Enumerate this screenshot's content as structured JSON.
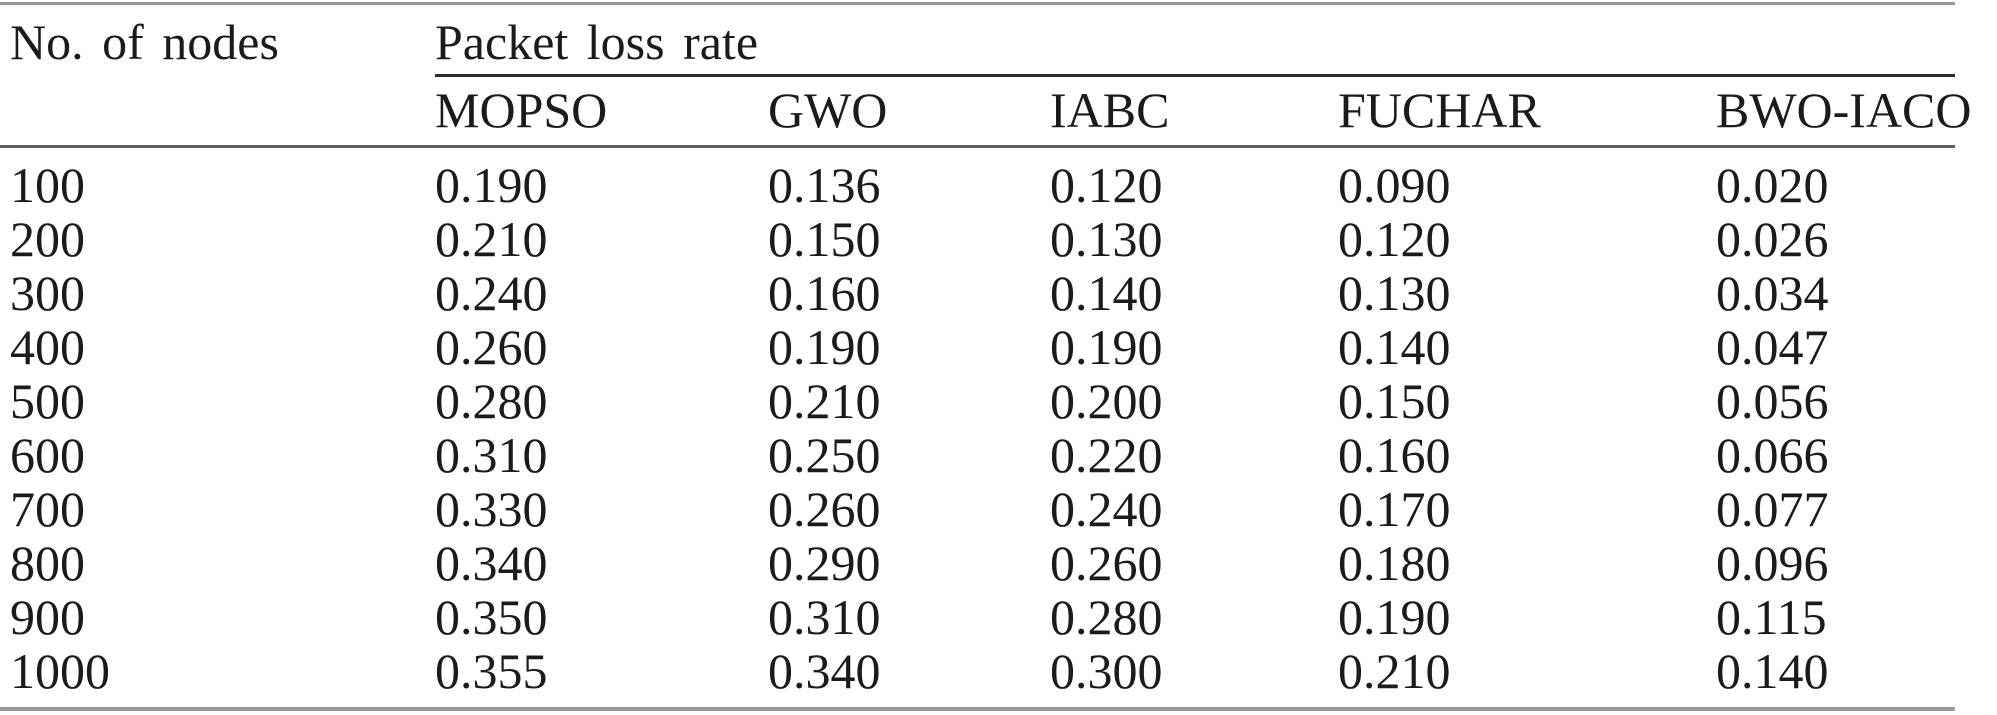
{
  "table": {
    "row_axis_label": "No. of nodes",
    "group_header": "Packet loss rate",
    "columns": [
      "MOPSO",
      "GWO",
      "IABC",
      "FUCHAR",
      "BWO-IACO"
    ],
    "rows": [
      {
        "nodes": "100",
        "values": [
          "0.190",
          "0.136",
          "0.120",
          "0.090",
          "0.020"
        ]
      },
      {
        "nodes": "200",
        "values": [
          "0.210",
          "0.150",
          "0.130",
          "0.120",
          "0.026"
        ]
      },
      {
        "nodes": "300",
        "values": [
          "0.240",
          "0.160",
          "0.140",
          "0.130",
          "0.034"
        ]
      },
      {
        "nodes": "400",
        "values": [
          "0.260",
          "0.190",
          "0.190",
          "0.140",
          "0.047"
        ]
      },
      {
        "nodes": "500",
        "values": [
          "0.280",
          "0.210",
          "0.200",
          "0.150",
          "0.056"
        ]
      },
      {
        "nodes": "600",
        "values": [
          "0.310",
          "0.250",
          "0.220",
          "0.160",
          "0.066"
        ]
      },
      {
        "nodes": "700",
        "values": [
          "0.330",
          "0.260",
          "0.240",
          "0.170",
          "0.077"
        ]
      },
      {
        "nodes": "800",
        "values": [
          "0.340",
          "0.290",
          "0.260",
          "0.180",
          "0.096"
        ]
      },
      {
        "nodes": "900",
        "values": [
          "0.350",
          "0.310",
          "0.280",
          "0.190",
          "0.115"
        ]
      },
      {
        "nodes": "1000",
        "values": [
          "0.355",
          "0.340",
          "0.300",
          "0.210",
          "0.140"
        ]
      }
    ]
  },
  "chart_data": {
    "type": "table",
    "title": "Packet loss rate",
    "xlabel": "No. of nodes",
    "categories": [
      100,
      200,
      300,
      400,
      500,
      600,
      700,
      800,
      900,
      1000
    ],
    "series": [
      {
        "name": "MOPSO",
        "values": [
          0.19,
          0.21,
          0.24,
          0.26,
          0.28,
          0.31,
          0.33,
          0.34,
          0.35,
          0.355
        ]
      },
      {
        "name": "GWO",
        "values": [
          0.136,
          0.15,
          0.16,
          0.19,
          0.21,
          0.25,
          0.26,
          0.29,
          0.31,
          0.34
        ]
      },
      {
        "name": "IABC",
        "values": [
          0.12,
          0.13,
          0.14,
          0.19,
          0.2,
          0.22,
          0.24,
          0.26,
          0.28,
          0.3
        ]
      },
      {
        "name": "FUCHAR",
        "values": [
          0.09,
          0.12,
          0.13,
          0.14,
          0.15,
          0.16,
          0.17,
          0.18,
          0.19,
          0.21
        ]
      },
      {
        "name": "BWO-IACO",
        "values": [
          0.02,
          0.026,
          0.034,
          0.047,
          0.056,
          0.066,
          0.077,
          0.096,
          0.115,
          0.14
        ]
      }
    ],
    "colors": {
      "text": "#1b1b1b",
      "rule_dark": "#2e2e2e",
      "rule_gray": "#9a9a9a",
      "background": "#ffffff"
    }
  }
}
